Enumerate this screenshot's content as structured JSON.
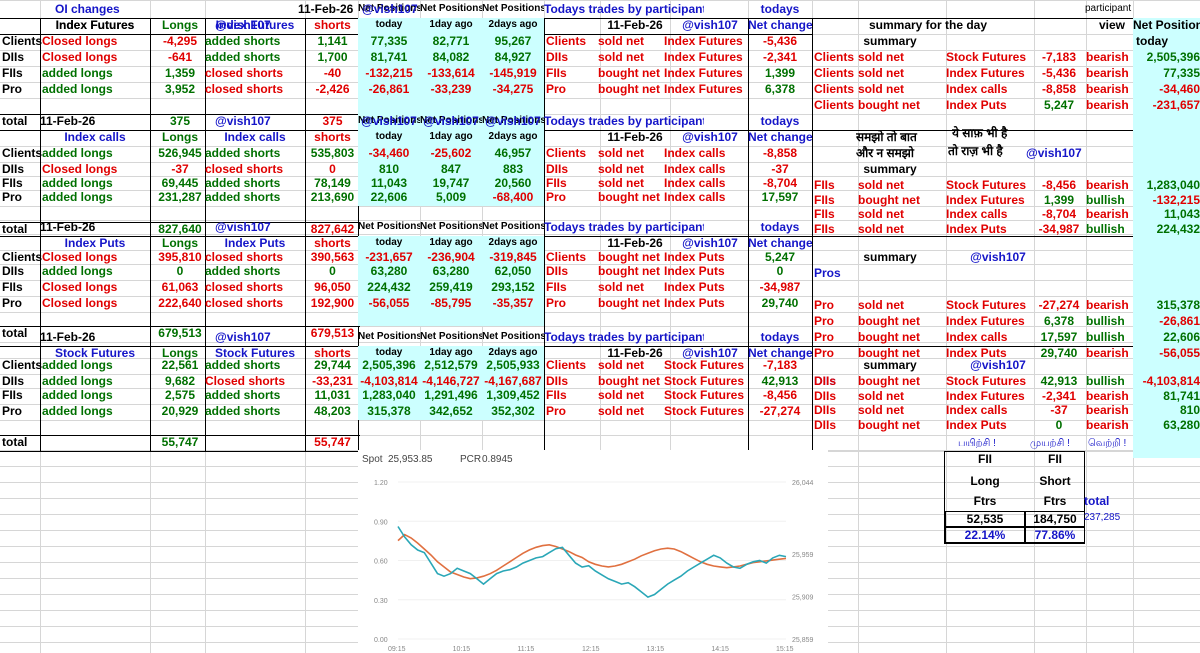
{
  "header": {
    "oi_changes": "OI changes",
    "date": "11-Feb-26",
    "handle": "@vish107",
    "net_positions": "Net Positions",
    "todays_trades": "Todays trades by participants",
    "todays": "todays",
    "summary_for_day": "summary for the day",
    "participant": "participant",
    "view": "view",
    "today": "today"
  },
  "row_labels": [
    "Clients",
    "DIIs",
    "FIIs",
    "Pro"
  ],
  "total_label": "total",
  "col_labels": {
    "longs": "Longs",
    "shorts": "shorts",
    "today": "today",
    "one_day_ago": "1day ago",
    "two_days_ago": "2days ago",
    "net_change": "Net change",
    "summary": "summary"
  },
  "blocks": [
    {
      "name": "Index Futures",
      "title": "Index Futures",
      "long_actions": [
        "Closed longs",
        "Closed longs",
        "added longs",
        "added longs"
      ],
      "longs": [
        "-4,295",
        "-641",
        "1,359",
        "3,952"
      ],
      "short_actions": [
        "added shorts",
        "added shorts",
        "closed shorts",
        "closed shorts"
      ],
      "shorts": [
        "1,141",
        "1,700",
        "-40",
        "-2,426"
      ],
      "long_total": "375",
      "short_total": "375",
      "net_today": [
        "77,335",
        "81,741",
        "-132,215",
        "-26,861"
      ],
      "net_1d": [
        "82,771",
        "84,082",
        "-133,614",
        "-33,239"
      ],
      "net_2d": [
        "95,267",
        "84,927",
        "-145,919",
        "-34,275"
      ],
      "trade_part": [
        "Clients",
        "DIIs",
        "FIIs",
        "Pro"
      ],
      "trade_action": [
        "sold net",
        "sold net",
        "bought net",
        "bought net"
      ],
      "trade_instr": [
        "Index Futures",
        "Index Futures",
        "Index Futures",
        "Index Futures"
      ],
      "trade_value": [
        "-5,436",
        "-2,341",
        "1,399",
        "6,378"
      ]
    },
    {
      "name": "Index calls",
      "title": "Index calls",
      "long_actions": [
        "added longs",
        "Closed longs",
        "added longs",
        "added longs"
      ],
      "longs": [
        "526,945",
        "-37",
        "69,445",
        "231,287"
      ],
      "short_actions": [
        "added shorts",
        "closed shorts",
        "added shorts",
        "added shorts"
      ],
      "shorts": [
        "535,803",
        "0",
        "78,149",
        "213,690"
      ],
      "long_total": "827,640",
      "short_total": "827,642",
      "net_today": [
        "-34,460",
        "810",
        "11,043",
        "22,606"
      ],
      "net_1d": [
        "-25,602",
        "847",
        "19,747",
        "5,009"
      ],
      "net_2d": [
        "46,957",
        "883",
        "20,560",
        "-68,400"
      ],
      "trade_part": [
        "Clients",
        "DIIs",
        "FIIs",
        "Pro"
      ],
      "trade_action": [
        "sold net",
        "sold net",
        "sold net",
        "bought net"
      ],
      "trade_instr": [
        "Index calls",
        "Index calls",
        "Index calls",
        "Index calls"
      ],
      "trade_value": [
        "-8,858",
        "-37",
        "-8,704",
        "17,597"
      ]
    },
    {
      "name": "Index Puts",
      "title": "Index Puts",
      "long_actions": [
        "Closed longs",
        "added longs",
        "Closed longs",
        "Closed longs"
      ],
      "longs": [
        "395,810",
        "0",
        "61,063",
        "222,640"
      ],
      "short_actions": [
        "closed shorts",
        "added shorts",
        "closed shorts",
        "closed shorts"
      ],
      "shorts": [
        "390,563",
        "0",
        "96,050",
        "192,900"
      ],
      "long_total": "679,513",
      "short_total": "679,513",
      "net_today": [
        "-231,657",
        "63,280",
        "224,432",
        "-56,055"
      ],
      "net_1d": [
        "-236,904",
        "63,280",
        "259,419",
        "-85,795"
      ],
      "net_2d": [
        "-319,845",
        "62,050",
        "293,152",
        "-35,357"
      ],
      "trade_part": [
        "Clients",
        "DIIs",
        "FIIs",
        "Pro"
      ],
      "trade_action": [
        "bought net",
        "bought net",
        "sold net",
        "bought net"
      ],
      "trade_instr": [
        "Index Puts",
        "Index Puts",
        "Index Puts",
        "Index Puts"
      ],
      "trade_value": [
        "5,247",
        "0",
        "-34,987",
        "29,740"
      ]
    },
    {
      "name": "Stock Futures",
      "title": "Stock Futures",
      "long_actions": [
        "added longs",
        "added longs",
        "added longs",
        "added longs"
      ],
      "longs": [
        "22,561",
        "9,682",
        "2,575",
        "20,929"
      ],
      "short_actions": [
        "added shorts",
        "Closed shorts",
        "added shorts",
        "added shorts"
      ],
      "shorts": [
        "29,744",
        "-33,231",
        "11,031",
        "48,203"
      ],
      "long_total": "55,747",
      "short_total": "55,747",
      "net_today": [
        "2,505,396",
        "-4,103,814",
        "1,283,040",
        "315,378"
      ],
      "net_1d": [
        "2,512,579",
        "-4,146,727",
        "1,291,496",
        "342,652"
      ],
      "net_2d": [
        "2,505,933",
        "-4,167,687",
        "1,309,452",
        "352,302"
      ],
      "trade_part": [
        "Clients",
        "DIIs",
        "FIIs",
        "Pro"
      ],
      "trade_action": [
        "sold net",
        "bought net",
        "sold net",
        "sold net"
      ],
      "trade_instr": [
        "Stock Futures",
        "Stock Futures",
        "Stock Futures",
        "Stock Futures"
      ],
      "trade_value": [
        "-7,183",
        "42,913",
        "-8,456",
        "-27,274"
      ]
    }
  ],
  "summary_groups": [
    {
      "head": "",
      "heading_text": "",
      "rows": [
        {
          "part": "Clients",
          "action": "sold net",
          "instr": "Stock Futures",
          "value": "-7,183",
          "view": "bearish",
          "net": "2,505,396"
        },
        {
          "part": "Clients",
          "action": "sold net",
          "instr": "Index Futures",
          "value": "-5,436",
          "view": "bearish",
          "net": "77,335"
        },
        {
          "part": "Clients",
          "action": "sold net",
          "instr": "Index calls",
          "value": "-8,858",
          "view": "bearish",
          "net": "-34,460"
        },
        {
          "part": "Clients",
          "action": "bought net",
          "instr": "Index Puts",
          "value": "5,247",
          "view": "bearish",
          "net": "-231,657"
        }
      ]
    },
    {
      "head": "",
      "heading_text": "",
      "rows": [
        {
          "part": "FIIs",
          "action": "sold net",
          "instr": "Stock Futures",
          "value": "-8,456",
          "view": "bearish",
          "net": "1,283,040"
        },
        {
          "part": "FIIs",
          "action": "bought net",
          "instr": "Index Futures",
          "value": "1,399",
          "view": "bullish",
          "net": "-132,215"
        },
        {
          "part": "FIIs",
          "action": "sold net",
          "instr": "Index calls",
          "value": "-8,704",
          "view": "bearish",
          "net": "11,043"
        },
        {
          "part": "FIIs",
          "action": "sold net",
          "instr": "Index Puts",
          "value": "-34,987",
          "view": "bullish",
          "net": "224,432"
        }
      ]
    },
    {
      "head": "Pros",
      "heading_text": "Pros",
      "rows": [
        {
          "part": "Pro",
          "action": "sold net",
          "instr": "Stock Futures",
          "value": "-27,274",
          "view": "bearish",
          "net": "315,378"
        },
        {
          "part": "Pro",
          "action": "bought net",
          "instr": "Index Futures",
          "value": "6,378",
          "view": "bullish",
          "net": "-26,861"
        },
        {
          "part": "Pro",
          "action": "bought net",
          "instr": "Index calls",
          "value": "17,597",
          "view": "bullish",
          "net": "22,606"
        },
        {
          "part": "Pro",
          "action": "bought net",
          "instr": "Index Puts",
          "value": "29,740",
          "view": "bearish",
          "net": "-56,055"
        }
      ]
    },
    {
      "head": "DIIs",
      "heading_text": "DIIs",
      "rows": [
        {
          "part": "DIIs",
          "action": "bought net",
          "instr": "Stock Futures",
          "value": "42,913",
          "view": "bullish",
          "net": "-4,103,814"
        },
        {
          "part": "DIIs",
          "action": "sold net",
          "instr": "Index Futures",
          "value": "-2,341",
          "view": "bearish",
          "net": "81,741"
        },
        {
          "part": "DIIs",
          "action": "sold net",
          "instr": "Index calls",
          "value": "-37",
          "view": "bearish",
          "net": "810"
        },
        {
          "part": "DIIs",
          "action": "bought net",
          "instr": "Index Puts",
          "value": "0",
          "view": "bearish",
          "net": "63,280"
        }
      ]
    }
  ],
  "hindi": {
    "line1a": "समझो तो बात",
    "line1b": "और न समझो",
    "line2a": "ये साफ़ भी है",
    "line2b": "तो राज़ भी है"
  },
  "tamil": [
    "பயிற்சி !",
    "முயற்சி !",
    "வெற்றி !"
  ],
  "fii_box": {
    "fii": "FII",
    "long": "Long",
    "short": "Short",
    "ftrs": "Ftrs",
    "total_label": "total",
    "long_value": "52,535",
    "short_value": "184,750",
    "total_value": "237,285",
    "long_pct": "22.14%",
    "short_pct": "77.86%"
  },
  "chart_data": {
    "type": "line",
    "spot_label": "Spot",
    "spot_value": "25,953.85",
    "pcr_label": "PCR",
    "pcr_value": "0.8945",
    "x_ticks": [
      "09:15",
      "10:15",
      "11:15",
      "12:15",
      "13:15",
      "14:15",
      "15:15"
    ],
    "y_left_ticks": [
      "1.20",
      "0.90",
      "0.60",
      "0.30",
      "0.00"
    ],
    "y_left_range": [
      0,
      1.2
    ],
    "y_right_ticks": [
      "26,044",
      "25,959",
      "25,909",
      "25,859"
    ],
    "y_right_range": [
      25859,
      26044
    ],
    "colors": {
      "spot": "#e07040",
      "pcr": "#2aa7b7"
    },
    "series": [
      {
        "key": "spot",
        "axis": "right",
        "values": [
          25975,
          25982,
          25978,
          25972,
          25965,
          25958,
          25950,
          25944,
          25938,
          25935,
          25932,
          25930,
          25931,
          25933,
          25936,
          25940,
          25945,
          25950,
          25955,
          25960,
          25964,
          25967,
          25969,
          25970,
          25968,
          25965,
          25962,
          25958,
          25955,
          25950,
          25947,
          25945,
          25944,
          25945,
          25947,
          25950,
          25953,
          25957,
          25960,
          25963,
          25965,
          25966,
          25965,
          25962,
          25958,
          25954,
          25950,
          25947,
          25945,
          25944,
          25943,
          25944,
          25945,
          25947,
          25949,
          25950,
          25951,
          25952,
          25953,
          25954
        ]
      },
      {
        "key": "pcr",
        "axis": "left",
        "values": [
          0.86,
          0.78,
          0.72,
          0.68,
          0.66,
          0.58,
          0.5,
          0.48,
          0.5,
          0.54,
          0.52,
          0.5,
          0.46,
          0.42,
          0.46,
          0.5,
          0.52,
          0.53,
          0.55,
          0.58,
          0.6,
          0.62,
          0.63,
          0.66,
          0.69,
          0.7,
          0.64,
          0.58,
          0.55,
          0.56,
          0.52,
          0.49,
          0.46,
          0.44,
          0.42,
          0.43,
          0.4,
          0.36,
          0.32,
          0.34,
          0.38,
          0.42,
          0.45,
          0.48,
          0.52,
          0.55,
          0.58,
          0.61,
          0.64,
          0.62,
          0.58,
          0.55,
          0.54,
          0.57,
          0.59,
          0.6,
          0.58,
          0.62,
          0.64,
          0.63
        ]
      }
    ]
  }
}
